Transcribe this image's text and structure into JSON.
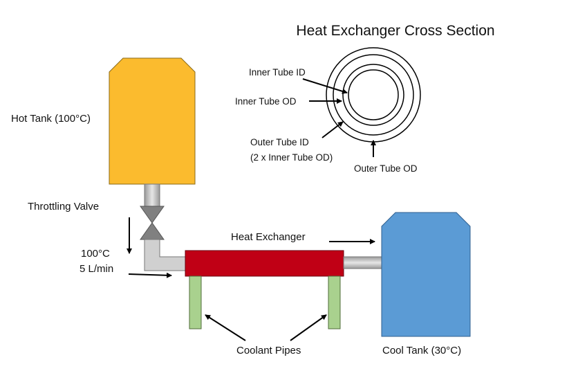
{
  "cross_section": {
    "title": "Heat Exchanger Cross Section",
    "inner_tube_id": "Inner Tube ID",
    "inner_tube_od": "Inner Tube OD",
    "outer_tube_id_line1": "Outer Tube ID",
    "outer_tube_id_line2": "(2 x Inner Tube OD)",
    "outer_tube_od": "Outer Tube OD"
  },
  "system": {
    "hot_tank": "Hot Tank (100°C)",
    "throttling_valve": "Throttling Valve",
    "inlet_temp": "100°C",
    "inlet_flow": "5 L/min",
    "heat_exchanger": "Heat Exchanger",
    "coolant_pipes": "Coolant Pipes",
    "cool_tank": "Cool Tank (30°C)"
  },
  "colors": {
    "hot_tank": "#fbbb2e",
    "cool_tank": "#5b9bd5",
    "heat_exchanger": "#c00015",
    "coolant_pipe": "#a9d18e",
    "pipe": "#bfbfbf",
    "valve": "#7f7f7f"
  }
}
